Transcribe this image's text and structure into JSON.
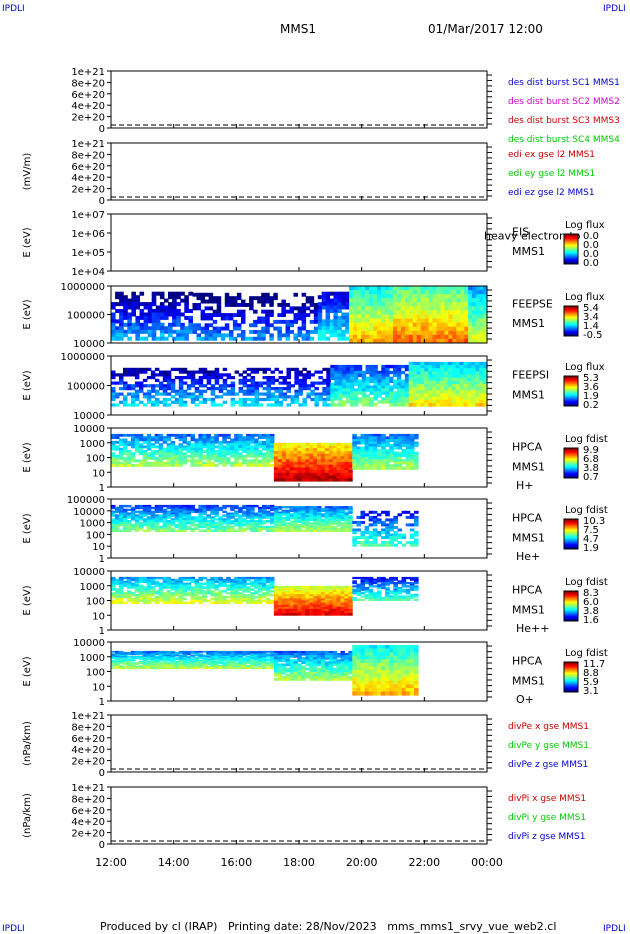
{
  "page": {
    "corner_label": "IPDLI",
    "spacecraft": "MMS1",
    "date_time": "01/Mar/2017 12:00",
    "footer_producer": "Produced by cl (IRAP)",
    "footer_date": "Printing date: 28/Nov/2023",
    "footer_file": "mms_mms1_srvy_vue_web2.cl"
  },
  "colors": {
    "c1": "#0000cc",
    "c2": "#cc00cc",
    "c3": "#cc0000",
    "c4": "#00cc00",
    "dash": "#000000"
  },
  "chart_data": {
    "type": "heatmap",
    "x_ticks": [
      "12:00",
      "14:00",
      "16:00",
      "18:00",
      "20:00",
      "22:00",
      "00:00"
    ],
    "x_range_hours": [
      12,
      24
    ],
    "panels": [
      {
        "id": "dist",
        "kind": "line",
        "ylabel": "",
        "ticks": [
          "1e+21",
          "8e+20",
          "6e+20",
          "4e+20",
          "2e+20",
          "0"
        ],
        "dashed_zero": true,
        "legend": [
          {
            "text": "des dist burst SC1 MMS1",
            "color": "#0000cc"
          },
          {
            "text": "des dist burst SC2 MMS2",
            "color": "#cc00cc"
          },
          {
            "text": "des dist burst SC3 MMS3",
            "color": "#cc0000"
          },
          {
            "text": "des dist burst SC4 MMS4",
            "color": "#00cc00"
          }
        ]
      },
      {
        "id": "edi",
        "kind": "line",
        "ylabel": "(mV/m)",
        "ticks": [
          "1e+21",
          "8e+20",
          "6e+20",
          "4e+20",
          "2e+20",
          "0"
        ],
        "dashed_zero": true,
        "legend": [
          {
            "text": "edi ex gse l2 MMS1",
            "color": "#cc0000"
          },
          {
            "text": "edi ey gse l2 MMS1",
            "color": "#00cc00"
          },
          {
            "text": "edi ez gse l2 MMS1",
            "color": "#0000cc"
          }
        ]
      },
      {
        "id": "eis",
        "kind": "spec",
        "ylabel": "E (eV)",
        "ticks": [
          "1e+07",
          "1e+06",
          "1e+05",
          "1e+04"
        ],
        "labels": [
          "EIS",
          "MMS1"
        ],
        "overlay": "heavy electron to",
        "cbar_title": "Log flux",
        "cbar_values": [
          "0.0",
          "0.0",
          "0.0",
          "0.0"
        ],
        "data": []
      },
      {
        "id": "feepse",
        "kind": "spec",
        "ylabel": "E (eV)",
        "ticks": [
          "1000000",
          "100000",
          "10000"
        ],
        "labels": [
          "FEEPSE",
          "MMS1"
        ],
        "cbar_title": "Log flux",
        "cbar_values": [
          "5.4",
          "3.4",
          "1.4",
          "-0.5"
        ],
        "data": [
          {
            "t0": 12.0,
            "t1": 14.6,
            "e0": 0.05,
            "e1": 0.9,
            "v": 0.15,
            "speck": 0.35
          },
          {
            "t0": 14.6,
            "t1": 18.6,
            "e0": 0.05,
            "e1": 0.88,
            "v": 0.12,
            "speck": 0.55
          },
          {
            "t0": 18.6,
            "t1": 19.6,
            "e0": 0.05,
            "e1": 0.9,
            "v": 0.25,
            "speck": 0.25
          },
          {
            "t0": 19.6,
            "t1": 21.0,
            "e0": 0.0,
            "e1": 1.0,
            "v": 0.55,
            "speck": 0
          },
          {
            "t0": 21.0,
            "t1": 23.4,
            "e0": 0.0,
            "e1": 1.0,
            "v": 0.62,
            "speck": 0
          },
          {
            "t0": 23.4,
            "t1": 24.0,
            "e0": 0.0,
            "e1": 1.0,
            "v": 0.45,
            "speck": 0
          }
        ]
      },
      {
        "id": "feepsi",
        "kind": "spec",
        "ylabel": "E (eV)",
        "ticks": [
          "1000000",
          "100000",
          "10000"
        ],
        "labels": [
          "FEEPSI",
          "MMS1"
        ],
        "cbar_title": "Log flux",
        "cbar_values": [
          "5.3",
          "3.6",
          "1.9",
          "0.2"
        ],
        "data": [
          {
            "t0": 12.0,
            "t1": 19.0,
            "e0": 0.15,
            "e1": 0.8,
            "v": 0.2,
            "speck": 0.45
          },
          {
            "t0": 19.0,
            "t1": 21.5,
            "e0": 0.15,
            "e1": 0.85,
            "v": 0.35,
            "speck": 0.15
          },
          {
            "t0": 21.5,
            "t1": 24.0,
            "e0": 0.15,
            "e1": 0.9,
            "v": 0.5,
            "speck": 0
          }
        ]
      },
      {
        "id": "hpca_h",
        "kind": "spec",
        "ylabel": "E (eV)",
        "ticks": [
          "10000",
          "1000",
          "100",
          "10",
          "1"
        ],
        "labels": [
          "HPCA",
          "MMS1",
          "H+"
        ],
        "cbar_title": "Log fdist",
        "cbar_values": [
          "9.9",
          "6.8",
          "3.8",
          "0.7"
        ],
        "data": [
          {
            "t0": 12.0,
            "t1": 17.2,
            "e0": 0.35,
            "e1": 0.9,
            "v": 0.4,
            "speck": 0.2
          },
          {
            "t0": 17.2,
            "t1": 19.7,
            "e0": 0.1,
            "e1": 0.75,
            "v": 0.8,
            "speck": 0
          },
          {
            "t0": 19.7,
            "t1": 21.8,
            "e0": 0.3,
            "e1": 0.9,
            "v": 0.4,
            "speck": 0.1
          }
        ]
      },
      {
        "id": "hpca_he",
        "kind": "spec",
        "ylabel": "E (eV)",
        "ticks": [
          "100000",
          "10000",
          "1000",
          "100",
          "10",
          "1"
        ],
        "labels": [
          "HPCA",
          "MMS1",
          "He+"
        ],
        "cbar_title": "Log fdist",
        "cbar_values": [
          "10.3",
          "7.5",
          "4.7",
          "1.9"
        ],
        "data": [
          {
            "t0": 12.0,
            "t1": 17.2,
            "e0": 0.45,
            "e1": 0.9,
            "v": 0.35,
            "speck": 0.2
          },
          {
            "t0": 17.2,
            "t1": 19.7,
            "e0": 0.45,
            "e1": 0.88,
            "v": 0.4,
            "speck": 0.1
          },
          {
            "t0": 19.7,
            "t1": 21.8,
            "e0": 0.2,
            "e1": 0.8,
            "v": 0.3,
            "speck": 0.5
          }
        ]
      },
      {
        "id": "hpca_hepp",
        "kind": "spec",
        "ylabel": "E (eV)",
        "ticks": [
          "10000",
          "1000",
          "100",
          "10",
          "1"
        ],
        "labels": [
          "HPCA",
          "MMS1",
          "He++"
        ],
        "cbar_title": "Log fdist",
        "cbar_values": [
          "8.3",
          "6.0",
          "3.8",
          "1.6"
        ],
        "data": [
          {
            "t0": 12.0,
            "t1": 17.2,
            "e0": 0.45,
            "e1": 0.9,
            "v": 0.45,
            "speck": 0.2
          },
          {
            "t0": 17.2,
            "t1": 19.7,
            "e0": 0.25,
            "e1": 0.75,
            "v": 0.75,
            "speck": 0
          },
          {
            "t0": 19.7,
            "t1": 21.8,
            "e0": 0.5,
            "e1": 0.9,
            "v": 0.3,
            "speck": 0.3
          }
        ]
      },
      {
        "id": "hpca_o",
        "kind": "spec",
        "ylabel": "E (eV)",
        "ticks": [
          "10000",
          "1000",
          "100",
          "10",
          "1"
        ],
        "labels": [
          "HPCA",
          "MMS1",
          "O+"
        ],
        "cbar_title": "Log fdist",
        "cbar_values": [
          "11.7",
          "8.8",
          "5.9",
          "3.1"
        ],
        "data": [
          {
            "t0": 12.0,
            "t1": 17.2,
            "e0": 0.55,
            "e1": 0.85,
            "v": 0.4,
            "speck": 0.1
          },
          {
            "t0": 17.2,
            "t1": 19.7,
            "e0": 0.35,
            "e1": 0.85,
            "v": 0.4,
            "speck": 0.1
          },
          {
            "t0": 19.7,
            "t1": 21.8,
            "e0": 0.1,
            "e1": 0.95,
            "v": 0.55,
            "speck": 0
          }
        ]
      },
      {
        "id": "divpe",
        "kind": "line",
        "ylabel": "(nPa/km)",
        "ticks": [
          "1e+21",
          "8e+20",
          "6e+20",
          "4e+20",
          "2e+20",
          "0"
        ],
        "dashed_zero": true,
        "legend": [
          {
            "text": "divPe x gse MMS1",
            "color": "#cc0000"
          },
          {
            "text": "divPe y gse MMS1",
            "color": "#00cc00"
          },
          {
            "text": "divPe z gse MMS1",
            "color": "#0000cc"
          }
        ]
      },
      {
        "id": "divpi",
        "kind": "line",
        "ylabel": "(nPa/km)",
        "ticks": [
          "1e+21",
          "8e+20",
          "6e+20",
          "4e+20",
          "2e+20",
          "0"
        ],
        "dashed_zero": true,
        "legend": [
          {
            "text": "divPi x gse MMS1",
            "color": "#cc0000"
          },
          {
            "text": "divPi y gse MMS1",
            "color": "#00cc00"
          },
          {
            "text": "divPi z gse MMS1",
            "color": "#0000cc"
          }
        ]
      }
    ]
  }
}
